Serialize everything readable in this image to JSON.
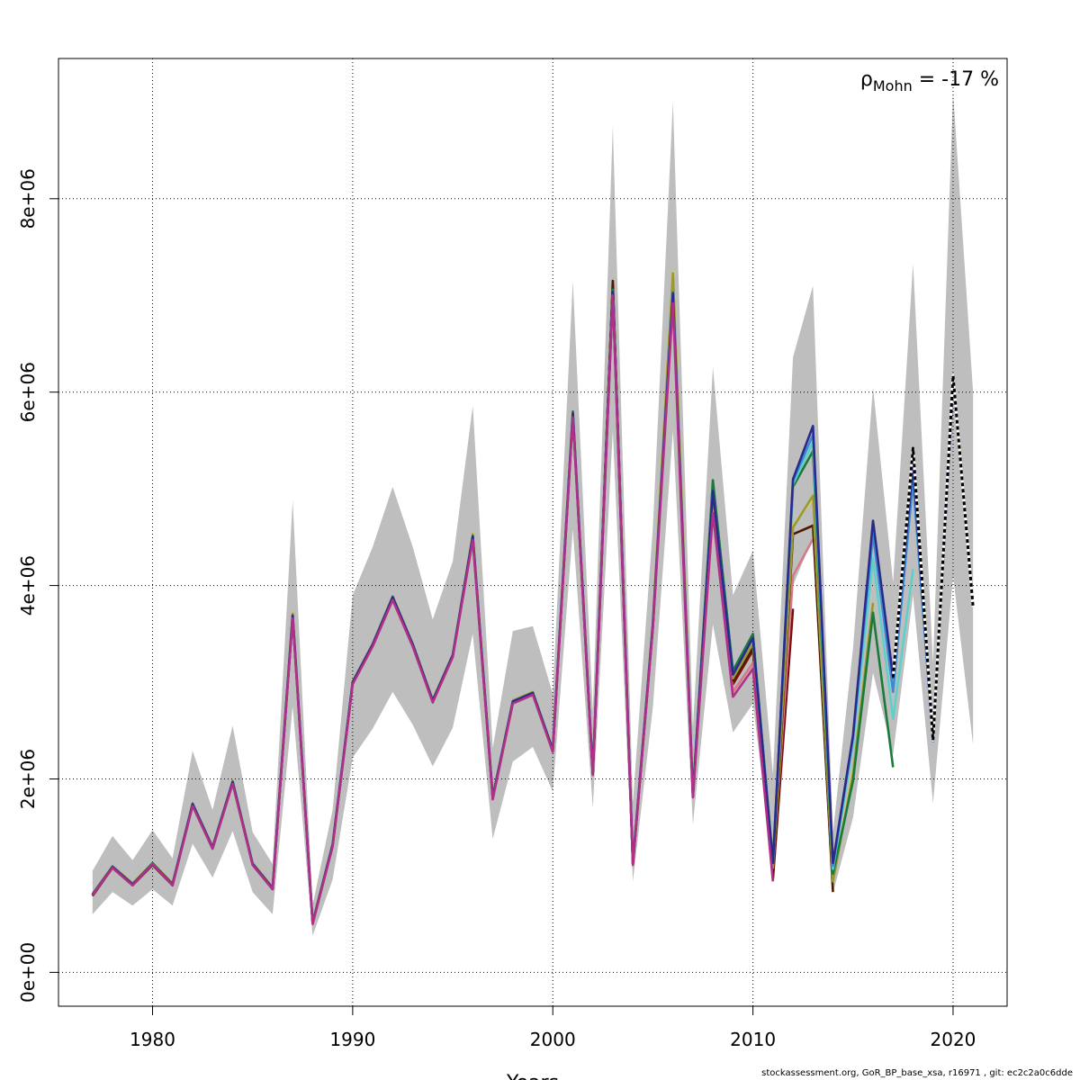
{
  "chart_data": {
    "type": "line",
    "title": "",
    "xlabel": "Years",
    "ylabel": "",
    "xlim": [
      1975.3,
      2022.7
    ],
    "ylim": [
      -350000,
      9450000
    ],
    "x_ticks": [
      1980,
      1990,
      2000,
      2010,
      2020
    ],
    "x_tick_labels": [
      "1980",
      "1990",
      "2000",
      "2010",
      "2020"
    ],
    "y_ticks": [
      0,
      2000000,
      4000000,
      6000000,
      8000000
    ],
    "y_tick_labels": [
      "0e+00",
      "2e+06",
      "4e+06",
      "6e+06",
      "8e+06"
    ],
    "grid": true,
    "annotation": {
      "prefix": "ρ",
      "subscript": "Mohn",
      "text": " = -17 %",
      "position": "top-right"
    },
    "colors": {
      "band": "#bebebe",
      "grid": "#000000"
    },
    "band": {
      "x": [
        1977,
        1978,
        1979,
        1980,
        1981,
        1982,
        1983,
        1984,
        1985,
        1986,
        1987,
        1988,
        1989,
        1990,
        1991,
        1992,
        1993,
        1994,
        1995,
        1996,
        1997,
        1998,
        1999,
        2000,
        2001,
        2002,
        2003,
        2004,
        2005,
        2006,
        2007,
        2008,
        2009,
        2010,
        2011,
        2012,
        2013,
        2014,
        2015,
        2016,
        2017,
        2018,
        2019,
        2020,
        2021
      ],
      "lower": [
        600000,
        830000,
        690000,
        860000,
        690000,
        1330000,
        980000,
        1460000,
        830000,
        600000,
        2750000,
        380000,
        960000,
        2220000,
        2520000,
        2900000,
        2560000,
        2130000,
        2530000,
        3500000,
        1380000,
        2180000,
        2330000,
        1870000,
        4580000,
        1700000,
        5600000,
        940000,
        2740000,
        5600000,
        1530000,
        3600000,
        2480000,
        2780000,
        1100000,
        4000000,
        4500000,
        820000,
        1600000,
        3100000,
        2250000,
        3900000,
        1750000,
        4100000,
        2350000
      ],
      "upper": [
        1050000,
        1410000,
        1160000,
        1470000,
        1180000,
        2290000,
        1680000,
        2550000,
        1450000,
        1120000,
        4880000,
        700000,
        1680000,
        3900000,
        4400000,
        5020000,
        4400000,
        3650000,
        4250000,
        5860000,
        2320000,
        3530000,
        3580000,
        2880000,
        7150000,
        2700000,
        8750000,
        1760000,
        4600000,
        9000000,
        2530000,
        6260000,
        3900000,
        4360000,
        2050000,
        6360000,
        7100000,
        1450000,
        3350000,
        6050000,
        4030000,
        7330000,
        3200000,
        9100000,
        6000000
      ]
    },
    "series": [
      {
        "color": "#7a0e0e",
        "x": [
          1977,
          1978,
          1979,
          1980,
          1981,
          1982,
          1983,
          1984,
          1985,
          1986,
          1987,
          1988,
          1989,
          1990,
          1991,
          1992,
          1993,
          1994,
          1995,
          1996,
          1997,
          1998,
          1999,
          2000,
          2001,
          2002,
          2003,
          2004,
          2005,
          2006,
          2007,
          2008,
          2009,
          2010,
          2011,
          2012
        ],
        "values": [
          790000,
          1080000,
          900000,
          1110000,
          900000,
          1730000,
          1280000,
          1960000,
          1110000,
          860000,
          3680000,
          510000,
          1310000,
          2990000,
          3380000,
          3870000,
          3380000,
          2800000,
          3270000,
          4500000,
          1800000,
          2790000,
          2880000,
          2290000,
          5770000,
          2050000,
          7120000,
          1120000,
          3570000,
          7180000,
          1820000,
          4900000,
          2980000,
          3330000,
          960000,
          3760000
        ]
      },
      {
        "color": "#d67a8a",
        "x": [
          1977,
          1978,
          1979,
          1980,
          1981,
          1982,
          1983,
          1984,
          1985,
          1986,
          1987,
          1988,
          1989,
          1990,
          1991,
          1992,
          1993,
          1994,
          1995,
          1996,
          1997,
          1998,
          1999,
          2000,
          2001,
          2002,
          2003,
          2004,
          2005,
          2006,
          2007,
          2008,
          2009,
          2010,
          2011,
          2012,
          2013
        ],
        "values": [
          800000,
          1090000,
          910000,
          1120000,
          910000,
          1740000,
          1290000,
          1970000,
          1120000,
          870000,
          3690000,
          510000,
          1320000,
          3000000,
          3390000,
          3880000,
          3390000,
          2810000,
          3280000,
          4510000,
          1810000,
          2800000,
          2890000,
          2300000,
          5780000,
          2060000,
          7130000,
          1130000,
          3590000,
          7050000,
          1840000,
          4820000,
          2900000,
          3200000,
          1050000,
          4100000,
          4480000
        ]
      },
      {
        "color": "#4d1a00",
        "x": [
          1977,
          1978,
          1979,
          1980,
          1981,
          1982,
          1983,
          1984,
          1985,
          1986,
          1987,
          1988,
          1989,
          1990,
          1991,
          1992,
          1993,
          1994,
          1995,
          1996,
          1997,
          1998,
          1999,
          2000,
          2001,
          2002,
          2003,
          2004,
          2005,
          2006,
          2007,
          2008,
          2009,
          2010,
          2011,
          2012,
          2013,
          2014
        ],
        "values": [
          800000,
          1090000,
          910000,
          1120000,
          910000,
          1740000,
          1290000,
          1970000,
          1120000,
          870000,
          3690000,
          510000,
          1320000,
          3000000,
          3390000,
          3880000,
          3390000,
          2810000,
          3280000,
          4510000,
          1810000,
          2800000,
          2890000,
          2300000,
          5780000,
          2060000,
          7150000,
          1120000,
          3600000,
          7200000,
          1830000,
          4980000,
          3020000,
          3360000,
          980000,
          4530000,
          4620000,
          830000
        ]
      },
      {
        "color": "#d9d070",
        "x": [
          1977,
          1978,
          1979,
          1980,
          1981,
          1982,
          1983,
          1984,
          1985,
          1986,
          1987,
          1988,
          1989,
          1990,
          1991,
          1992,
          1993,
          1994,
          1995,
          1996,
          1997,
          1998,
          1999,
          2000,
          2001,
          2002,
          2003,
          2004,
          2005,
          2006,
          2007,
          2008,
          2009,
          2010,
          2011,
          2012,
          2013,
          2014,
          2015
        ],
        "values": [
          810000,
          1100000,
          920000,
          1130000,
          920000,
          1750000,
          1300000,
          1980000,
          1130000,
          880000,
          3720000,
          520000,
          1330000,
          3010000,
          3400000,
          3890000,
          3400000,
          2820000,
          3290000,
          4540000,
          1820000,
          2810000,
          2900000,
          2310000,
          5790000,
          2070000,
          7050000,
          1140000,
          3610000,
          7250000,
          1850000,
          5030000,
          3050000,
          3420000,
          1100000,
          4620000,
          4900000,
          950000,
          2100000
        ]
      },
      {
        "color": "#9a9a30",
        "x": [
          1977,
          1978,
          1979,
          1980,
          1981,
          1982,
          1983,
          1984,
          1985,
          1986,
          1987,
          1988,
          1989,
          1990,
          1991,
          1992,
          1993,
          1994,
          1995,
          1996,
          1997,
          1998,
          1999,
          2000,
          2001,
          2002,
          2003,
          2004,
          2005,
          2006,
          2007,
          2008,
          2009,
          2010,
          2011,
          2012,
          2013,
          2014,
          2015,
          2016
        ],
        "values": [
          810000,
          1100000,
          920000,
          1130000,
          920000,
          1750000,
          1300000,
          1980000,
          1130000,
          880000,
          3710000,
          520000,
          1330000,
          3010000,
          3400000,
          3890000,
          3400000,
          2820000,
          3290000,
          4530000,
          1820000,
          2810000,
          2900000,
          2310000,
          5790000,
          2070000,
          7040000,
          1140000,
          3610000,
          7230000,
          1850000,
          5000000,
          3040000,
          3400000,
          1080000,
          4600000,
          4930000,
          940000,
          2050000,
          3820000
        ]
      },
      {
        "color": "#1a7a3a",
        "x": [
          1977,
          1978,
          1979,
          1980,
          1981,
          1982,
          1983,
          1984,
          1985,
          1986,
          1987,
          1988,
          1989,
          1990,
          1991,
          1992,
          1993,
          1994,
          1995,
          1996,
          1997,
          1998,
          1999,
          2000,
          2001,
          2002,
          2003,
          2004,
          2005,
          2006,
          2007,
          2008,
          2009,
          2010,
          2011,
          2012,
          2013,
          2014,
          2015,
          2016,
          2017
        ],
        "values": [
          810000,
          1090000,
          910000,
          1130000,
          910000,
          1740000,
          1290000,
          1970000,
          1120000,
          860000,
          3690000,
          510000,
          1320000,
          3000000,
          3390000,
          3880000,
          3390000,
          2810000,
          3280000,
          4510000,
          1810000,
          2800000,
          2890000,
          2300000,
          5800000,
          2060000,
          7060000,
          1130000,
          3600000,
          7030000,
          1840000,
          5090000,
          3120000,
          3500000,
          1150000,
          5020000,
          5390000,
          1020000,
          1980000,
          3720000,
          2120000
        ]
      },
      {
        "color": "#5fd0c8",
        "x": [
          1977,
          1978,
          1979,
          1980,
          1981,
          1982,
          1983,
          1984,
          1985,
          1986,
          1987,
          1988,
          1989,
          1990,
          1991,
          1992,
          1993,
          1994,
          1995,
          1996,
          1997,
          1998,
          1999,
          2000,
          2001,
          2002,
          2003,
          2004,
          2005,
          2006,
          2007,
          2008,
          2009,
          2010,
          2011,
          2012,
          2013,
          2014,
          2015,
          2016,
          2017,
          2018
        ],
        "values": [
          800000,
          1090000,
          910000,
          1120000,
          910000,
          1740000,
          1290000,
          1970000,
          1120000,
          870000,
          3690000,
          510000,
          1320000,
          3000000,
          3390000,
          3880000,
          3390000,
          2810000,
          3280000,
          4510000,
          1810000,
          2800000,
          2890000,
          2300000,
          5780000,
          2060000,
          7040000,
          1130000,
          3590000,
          7020000,
          1840000,
          4980000,
          3080000,
          3460000,
          1130000,
          5050000,
          5480000,
          1070000,
          2350000,
          4280000,
          2620000,
          4170000
        ]
      },
      {
        "color": "#3a8ad8",
        "x": [
          1977,
          1978,
          1979,
          1980,
          1981,
          1982,
          1983,
          1984,
          1985,
          1986,
          1987,
          1988,
          1989,
          1990,
          1991,
          1992,
          1993,
          1994,
          1995,
          1996,
          1997,
          1998,
          1999,
          2000,
          2001,
          2002,
          2003,
          2004,
          2005,
          2006,
          2007,
          2008,
          2009,
          2010,
          2011,
          2012,
          2013,
          2014,
          2015,
          2016,
          2017,
          2018,
          2019
        ],
        "values": [
          800000,
          1090000,
          910000,
          1120000,
          910000,
          1740000,
          1290000,
          1970000,
          1120000,
          870000,
          3690000,
          510000,
          1320000,
          3000000,
          3390000,
          3880000,
          3390000,
          2810000,
          3280000,
          4510000,
          1810000,
          2800000,
          2890000,
          2300000,
          5780000,
          2060000,
          7040000,
          1130000,
          3590000,
          7020000,
          1840000,
          4980000,
          3080000,
          3460000,
          1130000,
          5080000,
          5560000,
          1100000,
          2430000,
          4530000,
          2900000,
          5080000,
          2380000
        ]
      },
      {
        "color": "#2a2a8a",
        "x": [
          1977,
          1978,
          1979,
          1980,
          1981,
          1982,
          1983,
          1984,
          1985,
          1986,
          1987,
          1988,
          1989,
          1990,
          1991,
          1992,
          1993,
          1994,
          1995,
          1996,
          1997,
          1998,
          1999,
          2000,
          2001,
          2002,
          2003,
          2004,
          2005,
          2006,
          2007,
          2008,
          2009,
          2010,
          2011,
          2012,
          2013,
          2014,
          2015,
          2016,
          2017,
          2018,
          2019,
          2020
        ],
        "values": [
          800000,
          1090000,
          910000,
          1120000,
          910000,
          1740000,
          1290000,
          1970000,
          1120000,
          870000,
          3690000,
          510000,
          1320000,
          3000000,
          3390000,
          3880000,
          3390000,
          2810000,
          3280000,
          4510000,
          1810000,
          2800000,
          2890000,
          2300000,
          5780000,
          2060000,
          7040000,
          1130000,
          3590000,
          7020000,
          1840000,
          4980000,
          3080000,
          3460000,
          1130000,
          5100000,
          5650000,
          1130000,
          2450000,
          4670000,
          3050000,
          5250000,
          2400000,
          6080000
        ]
      },
      {
        "color": "#b03088",
        "x": [
          1977,
          1978,
          1979,
          1980,
          1981,
          1982,
          1983,
          1984,
          1985,
          1986,
          1987,
          1988,
          1989,
          1990,
          1991,
          1992,
          1993,
          1994,
          1995,
          1996,
          1997,
          1998,
          1999,
          2000,
          2001,
          2002,
          2003,
          2004,
          2005,
          2006,
          2007,
          2008,
          2009,
          2010,
          2011
        ],
        "values": [
          800000,
          1080000,
          900000,
          1120000,
          900000,
          1720000,
          1280000,
          1950000,
          1110000,
          860000,
          3660000,
          500000,
          1300000,
          2980000,
          3370000,
          3850000,
          3370000,
          2790000,
          3260000,
          4470000,
          1790000,
          2780000,
          2870000,
          2280000,
          5740000,
          2040000,
          7000000,
          1110000,
          3560000,
          6920000,
          1810000,
          4750000,
          2850000,
          3140000,
          940000
        ]
      },
      {
        "color": "#000000",
        "dash": true,
        "x": [
          2017,
          2018,
          2019,
          2020,
          2021
        ],
        "values": [
          3050000,
          5420000,
          2400000,
          6170000,
          3780000
        ]
      }
    ]
  },
  "footer": "stockassessment.org, GoR_BP_base_xsa, r16971 , git: ec2c2a0c6dde"
}
